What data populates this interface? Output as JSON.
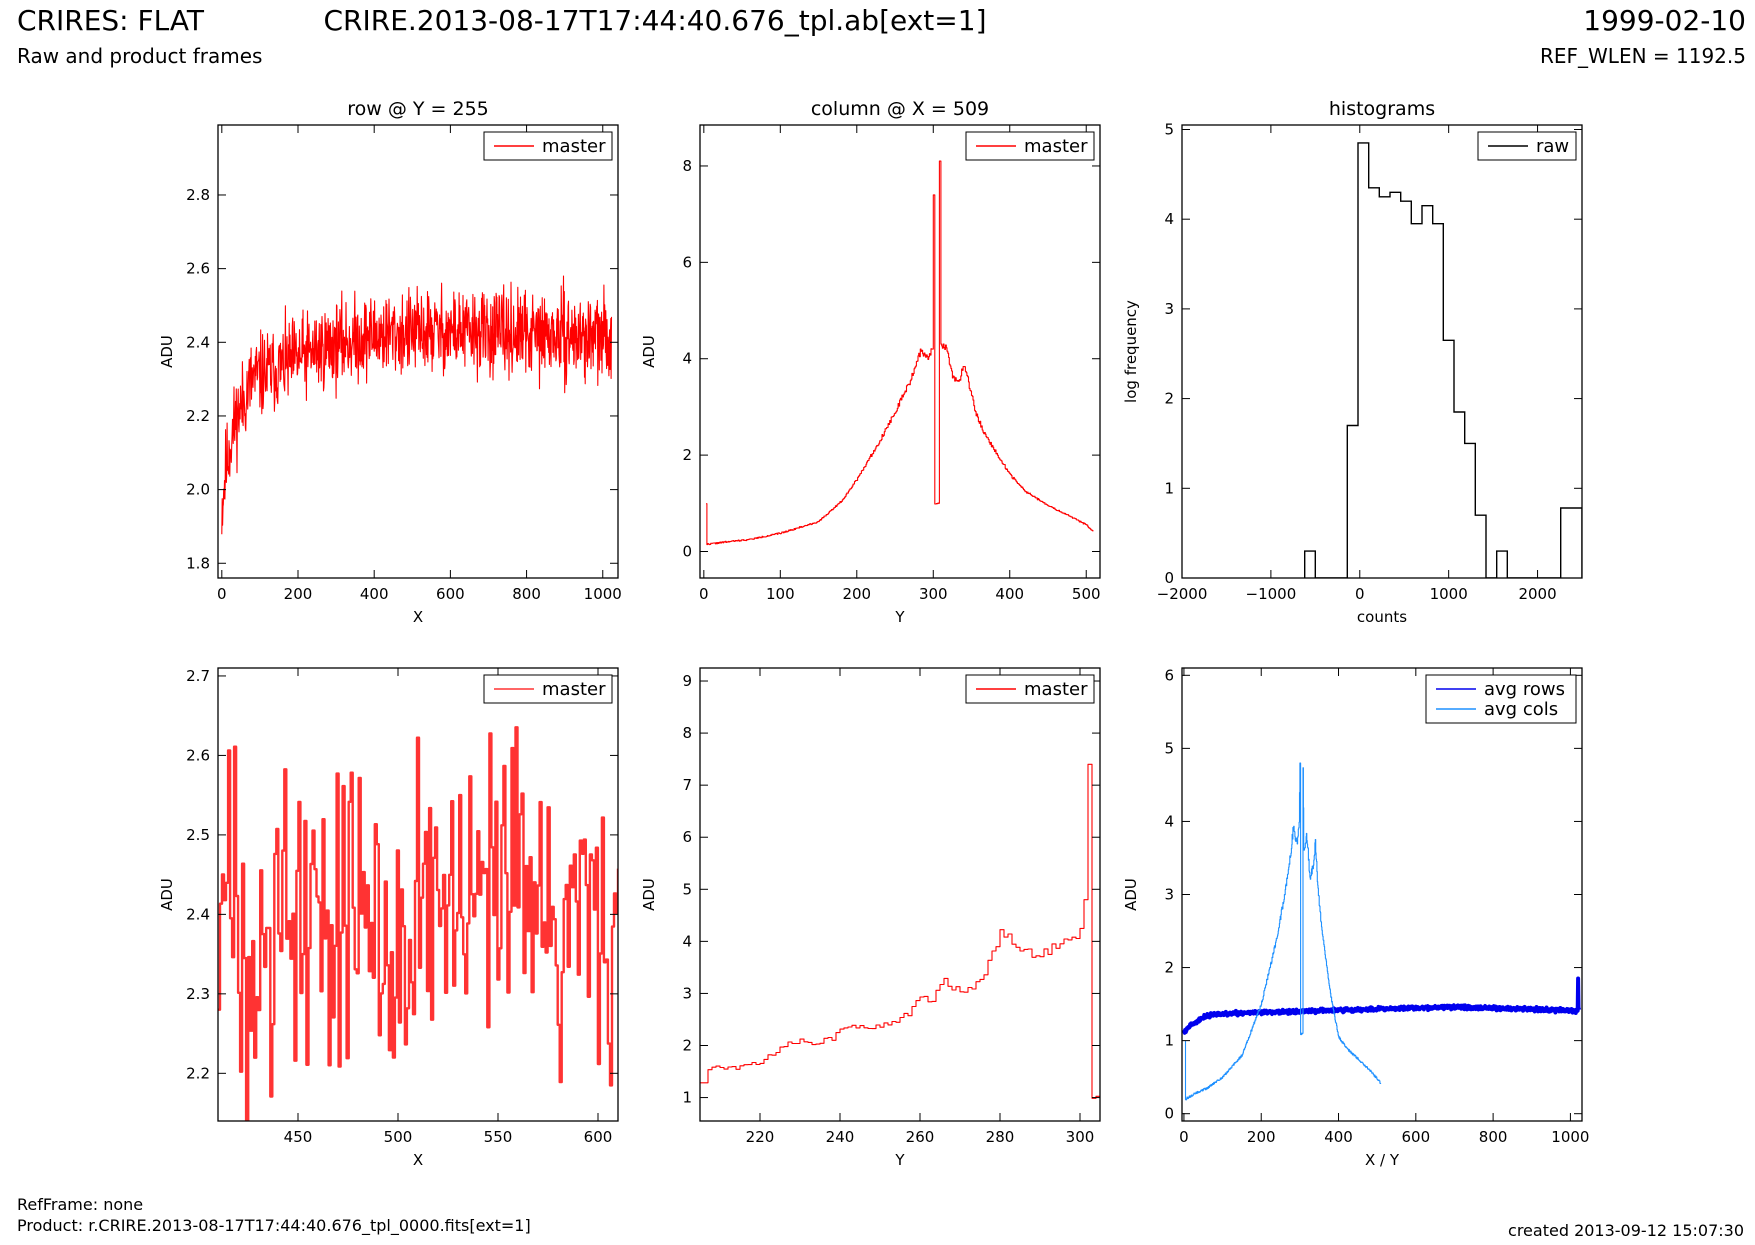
{
  "header": {
    "app_title": "CRIRES: FLAT",
    "subtitle": "Raw and product frames",
    "file_title": "CRIRE.2013-08-17T17:44:40.676_tpl.ab[ext=1]",
    "date": "1999-02-10",
    "ref_wlen": "REF_WLEN = 1192.5"
  },
  "footer": {
    "ref_frame": "RefFrame: none",
    "product": "Product: r.CRIRE.2013-08-17T17:44:40.676_tpl_0000.fits[ext=1]",
    "created": "created 2013-09-12 15:07:30"
  },
  "colors": {
    "master": "#ff0000",
    "master_zoom": "#ff3333",
    "raw": "#000000",
    "avg_rows": "#0000ee",
    "avg_cols": "#1e90ff"
  },
  "chart_data": [
    {
      "id": "p1",
      "type": "line",
      "title": "row @ Y = 255",
      "xlabel": "X",
      "ylabel": "ADU",
      "xlim": [
        -10,
        1040
      ],
      "ylim": [
        1.76,
        2.99
      ],
      "xticks": [
        0,
        200,
        400,
        600,
        800,
        1000
      ],
      "yticks": [
        1.8,
        2.0,
        2.2,
        2.4,
        2.6,
        2.8
      ],
      "xtick_labels": [
        "0",
        "200",
        "400",
        "600",
        "800",
        "1000"
      ],
      "ytick_labels": [
        "1.8",
        "2.0",
        "2.2",
        "2.4",
        "2.6",
        "2.8"
      ],
      "legend_location": "top-right",
      "series": [
        {
          "name": "master",
          "color": "#ff0000",
          "style": "noise",
          "envelope_x": [
            0,
            10,
            20,
            40,
            80,
            150,
            250,
            400,
            600,
            800,
            1023
          ],
          "envelope_y": [
            1.95,
            2.05,
            2.12,
            2.2,
            2.3,
            2.33,
            2.38,
            2.42,
            2.43,
            2.42,
            2.41
          ],
          "noise_amplitude": 0.09,
          "n_points": 1024,
          "seed": 11
        }
      ]
    },
    {
      "id": "p2",
      "type": "line",
      "title": "column @ X = 509",
      "xlabel": "Y",
      "ylabel": "ADU",
      "xlim": [
        -5,
        518
      ],
      "ylim": [
        -0.55,
        8.85
      ],
      "xticks": [
        0,
        100,
        200,
        300,
        400,
        500
      ],
      "yticks": [
        0,
        2,
        4,
        6,
        8
      ],
      "xtick_labels": [
        "0",
        "100",
        "200",
        "300",
        "400",
        "500"
      ],
      "ytick_labels": [
        "0",
        "2",
        "4",
        "6",
        "8"
      ],
      "legend_location": "top-right",
      "series": [
        {
          "name": "master",
          "color": "#ff0000",
          "style": "steps",
          "points": [
            [
              3,
              1.0
            ],
            [
              4,
              0.15
            ],
            [
              30,
              0.2
            ],
            [
              60,
              0.25
            ],
            [
              100,
              0.38
            ],
            [
              150,
              0.62
            ],
            [
              180,
              1.05
            ],
            [
              200,
              1.5
            ],
            [
              230,
              2.3
            ],
            [
              250,
              2.9
            ],
            [
              270,
              3.55
            ],
            [
              283,
              4.15
            ],
            [
              292,
              4.0
            ],
            [
              298,
              4.2
            ],
            [
              300,
              7.4
            ],
            [
              302,
              1.0
            ],
            [
              307,
              1.0
            ],
            [
              308,
              8.1
            ],
            [
              310,
              4.3
            ],
            [
              318,
              4.2
            ],
            [
              325,
              3.6
            ],
            [
              333,
              3.5
            ],
            [
              340,
              3.9
            ],
            [
              346,
              3.5
            ],
            [
              355,
              2.9
            ],
            [
              365,
              2.5
            ],
            [
              380,
              2.1
            ],
            [
              400,
              1.6
            ],
            [
              420,
              1.25
            ],
            [
              450,
              0.95
            ],
            [
              480,
              0.72
            ],
            [
              500,
              0.55
            ],
            [
              509,
              0.42
            ]
          ],
          "noise_amplitude": 0.05,
          "seed": 22
        }
      ]
    },
    {
      "id": "p3",
      "type": "histogram",
      "title": "histograms",
      "xlabel": "counts",
      "ylabel": "log frequency",
      "xlim": [
        -2000,
        2500
      ],
      "ylim": [
        0,
        5.05
      ],
      "xticks": [
        -2000,
        -1000,
        0,
        1000,
        2000
      ],
      "yticks": [
        0,
        1,
        2,
        3,
        4,
        5
      ],
      "xtick_labels": [
        "−2000",
        "−1000",
        "0",
        "1000",
        "2000"
      ],
      "ytick_labels": [
        "0",
        "1",
        "2",
        "3",
        "4",
        "5"
      ],
      "legend_location": "top-right",
      "series": [
        {
          "name": "raw",
          "color": "#000000",
          "bin_edges": [
            -620,
            -500,
            -380,
            -260,
            -140,
            -20,
            100,
            220,
            340,
            460,
            580,
            700,
            820,
            940,
            1060,
            1180,
            1300,
            1420,
            1540,
            1660,
            1780,
            1900,
            2020,
            2140,
            2260,
            2380,
            2500
          ],
          "bin_values": [
            0.3,
            0,
            0,
            0,
            1.7,
            4.85,
            4.35,
            4.25,
            4.3,
            4.2,
            3.95,
            4.15,
            3.95,
            2.65,
            1.85,
            1.5,
            0.7,
            0,
            0.3,
            0,
            0,
            0,
            0,
            0,
            0.78,
            0.78
          ]
        }
      ]
    },
    {
      "id": "p4",
      "type": "line",
      "title": "",
      "xlabel": "X",
      "ylabel": "ADU",
      "xlim": [
        410,
        610
      ],
      "ylim": [
        2.14,
        2.71
      ],
      "xticks": [
        450,
        500,
        550,
        600
      ],
      "yticks": [
        2.2,
        2.3,
        2.4,
        2.5,
        2.6,
        2.7
      ],
      "xtick_labels": [
        "450",
        "500",
        "550",
        "600"
      ],
      "ytick_labels": [
        "2.2",
        "2.3",
        "2.4",
        "2.5",
        "2.6",
        "2.7"
      ],
      "legend_location": "top-right",
      "series": [
        {
          "name": "master",
          "color": "#ff3333",
          "style": "noise-steps",
          "envelope_x": [
            410,
            610
          ],
          "envelope_y": [
            2.4,
            2.4
          ],
          "noise_amplitude": 0.17,
          "n_points": 200,
          "seed": 33
        }
      ]
    },
    {
      "id": "p5",
      "type": "line",
      "title": "",
      "xlabel": "Y",
      "ylabel": "ADU",
      "xlim": [
        205,
        305
      ],
      "ylim": [
        0.55,
        9.25
      ],
      "xticks": [
        220,
        240,
        260,
        280,
        300
      ],
      "yticks": [
        1,
        2,
        3,
        4,
        5,
        6,
        7,
        8,
        9
      ],
      "xtick_labels": [
        "220",
        "240",
        "260",
        "280",
        "300"
      ],
      "ytick_labels": [
        "1",
        "2",
        "3",
        "4",
        "5",
        "6",
        "7",
        "8",
        "9"
      ],
      "legend_location": "top-right",
      "series": [
        {
          "name": "master",
          "color": "#ff0000",
          "style": "steps",
          "points": [
            [
              205,
              1.3
            ],
            [
              206,
              1.3
            ],
            [
              207,
              1.5
            ],
            [
              208,
              1.6
            ],
            [
              212,
              1.55
            ],
            [
              216,
              1.6
            ],
            [
              220,
              1.7
            ],
            [
              224,
              1.85
            ],
            [
              226,
              2.0
            ],
            [
              230,
              2.1
            ],
            [
              234,
              2.05
            ],
            [
              238,
              2.15
            ],
            [
              240,
              2.35
            ],
            [
              244,
              2.4
            ],
            [
              248,
              2.35
            ],
            [
              252,
              2.45
            ],
            [
              256,
              2.55
            ],
            [
              258,
              2.7
            ],
            [
              260,
              2.9
            ],
            [
              263,
              2.85
            ],
            [
              266,
              3.3
            ],
            [
              268,
              3.1
            ],
            [
              272,
              3.05
            ],
            [
              276,
              3.35
            ],
            [
              278,
              3.8
            ],
            [
              280,
              4.15
            ],
            [
              283,
              4.0
            ],
            [
              286,
              3.75
            ],
            [
              290,
              3.8
            ],
            [
              294,
              3.9
            ],
            [
              298,
              4.05
            ],
            [
              300,
              4.2
            ],
            [
              301,
              4.8
            ],
            [
              302,
              7.4
            ],
            [
              303,
              1.0
            ],
            [
              305,
              1.0
            ]
          ],
          "noise_amplitude": 0.08,
          "seed": 44
        }
      ]
    },
    {
      "id": "p6",
      "type": "line",
      "title": "",
      "xlabel": "X / Y",
      "ylabel": "ADU",
      "xlim": [
        -5,
        1030
      ],
      "ylim": [
        -0.1,
        6.1
      ],
      "xticks": [
        0,
        200,
        400,
        600,
        800,
        1000
      ],
      "yticks": [
        0,
        1,
        2,
        3,
        4,
        5,
        6
      ],
      "xtick_labels": [
        "0",
        "200",
        "400",
        "600",
        "800",
        "1000"
      ],
      "ytick_labels": [
        "0",
        "1",
        "2",
        "3",
        "4",
        "5",
        "6"
      ],
      "legend_location": "top-right",
      "series": [
        {
          "name": "avg rows",
          "color": "#0000ee",
          "style": "thick-noise",
          "envelope_x": [
            0,
            20,
            50,
            80,
            150,
            300,
            500,
            700,
            900,
            1018
          ],
          "envelope_y": [
            1.12,
            1.22,
            1.32,
            1.36,
            1.38,
            1.4,
            1.43,
            1.46,
            1.43,
            1.41
          ],
          "noise_amplitude": 0.02,
          "n_points": 1024,
          "seed": 55,
          "tail": [
            [
              1019,
              1.41
            ],
            [
              1020,
              1.85
            ],
            [
              1021,
              1.45
            ],
            [
              1023,
              1.42
            ]
          ]
        },
        {
          "name": "avg cols",
          "color": "#1e90ff",
          "style": "steps",
          "points": [
            [
              3,
              1.0
            ],
            [
              4,
              0.2
            ],
            [
              30,
              0.28
            ],
            [
              60,
              0.35
            ],
            [
              100,
              0.5
            ],
            [
              150,
              0.8
            ],
            [
              200,
              1.5
            ],
            [
              240,
              2.4
            ],
            [
              270,
              3.3
            ],
            [
              283,
              3.9
            ],
            [
              292,
              3.7
            ],
            [
              298,
              4.0
            ],
            [
              300,
              4.8
            ],
            [
              302,
              1.1
            ],
            [
              306,
              1.1
            ],
            [
              308,
              4.8
            ],
            [
              310,
              3.6
            ],
            [
              318,
              3.8
            ],
            [
              326,
              3.2
            ],
            [
              334,
              3.4
            ],
            [
              340,
              3.7
            ],
            [
              346,
              3.1
            ],
            [
              355,
              2.6
            ],
            [
              365,
              2.2
            ],
            [
              380,
              1.6
            ],
            [
              400,
              1.05
            ],
            [
              420,
              0.9
            ],
            [
              450,
              0.75
            ],
            [
              480,
              0.6
            ],
            [
              509,
              0.42
            ]
          ],
          "noise_amplitude": 0.05,
          "seed": 66
        }
      ]
    }
  ]
}
